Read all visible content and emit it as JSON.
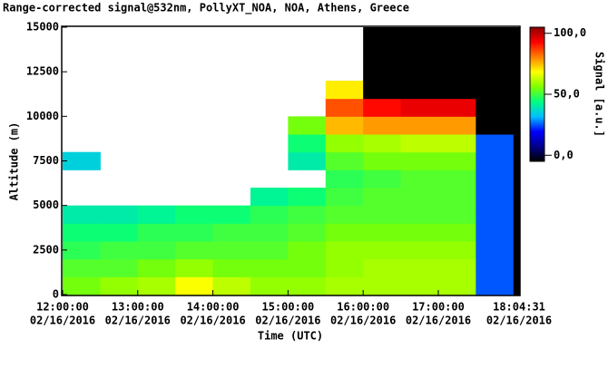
{
  "chart_data": {
    "type": "heatmap",
    "title": "Range-corrected signal@532nm, PollyXT_NOA, NOA, Athens, Greece",
    "xlabel": "Time (UTC)",
    "ylabel": "Altitude (m)",
    "colorbar_label": "Signal [a.u.]",
    "x": [
      12,
      12.5,
      13,
      13.5,
      14,
      14.5,
      15,
      15.5,
      16,
      16.5,
      17,
      17.5,
      18,
      18.0753
    ],
    "y": [
      0,
      1000,
      2000,
      3000,
      4000,
      5000,
      6000,
      7000,
      8000,
      9000,
      10000,
      11000,
      12000,
      13000,
      14000,
      15000
    ],
    "z": [
      [
        55,
        58,
        60,
        68,
        62,
        58,
        58,
        60,
        60,
        60,
        60,
        25,
        -5
      ],
      [
        52,
        52,
        55,
        58,
        55,
        55,
        55,
        58,
        60,
        60,
        60,
        25,
        -5
      ],
      [
        48,
        50,
        50,
        52,
        52,
        52,
        55,
        58,
        58,
        58,
        58,
        25,
        -5
      ],
      [
        45,
        45,
        48,
        48,
        50,
        50,
        52,
        55,
        55,
        55,
        55,
        25,
        -5
      ],
      [
        40,
        40,
        42,
        45,
        45,
        48,
        50,
        52,
        52,
        52,
        52,
        25,
        -5
      ],
      [
        null,
        null,
        null,
        null,
        null,
        42,
        45,
        50,
        52,
        52,
        52,
        25,
        -5
      ],
      [
        null,
        null,
        null,
        null,
        null,
        null,
        null,
        48,
        50,
        52,
        52,
        25,
        -5
      ],
      [
        35,
        null,
        null,
        null,
        null,
        null,
        40,
        52,
        55,
        55,
        55,
        25,
        -5
      ],
      [
        null,
        null,
        null,
        null,
        null,
        null,
        45,
        58,
        60,
        62,
        62,
        25,
        -5
      ],
      [
        null,
        null,
        null,
        null,
        null,
        null,
        55,
        75,
        78,
        78,
        78,
        -5,
        -5
      ],
      [
        null,
        null,
        null,
        null,
        null,
        null,
        null,
        85,
        92,
        95,
        95,
        -5,
        -5
      ],
      [
        null,
        null,
        null,
        null,
        null,
        null,
        null,
        70,
        -5,
        -5,
        -5,
        -5,
        -5
      ],
      [
        null,
        null,
        null,
        null,
        null,
        null,
        null,
        null,
        -5,
        -5,
        -5,
        -5,
        -5
      ],
      [
        null,
        null,
        null,
        null,
        null,
        null,
        null,
        null,
        -5,
        -5,
        -5,
        -5,
        -5
      ],
      [
        null,
        null,
        null,
        null,
        null,
        null,
        null,
        null,
        -5,
        -5,
        -5,
        -5,
        -5
      ]
    ],
    "xlim": [
      12,
      18.0753
    ],
    "ylim": [
      0,
      15000
    ],
    "xticks": [
      {
        "value": 12,
        "label": "12:00:00"
      },
      {
        "value": 13,
        "label": "13:00:00"
      },
      {
        "value": 14,
        "label": "14:00:00"
      },
      {
        "value": 15,
        "label": "15:00:00"
      },
      {
        "value": 16,
        "label": "16:00:00"
      },
      {
        "value": 17,
        "label": "17:00:00"
      },
      {
        "value": 18.0753,
        "label": "18:04:31"
      }
    ],
    "xtick_dates": [
      "02/16/2016",
      "02/16/2016",
      "02/16/2016",
      "02/16/2016",
      "02/16/2016",
      "02/16/2016",
      "02/16/2016"
    ],
    "yticks": [
      0,
      2500,
      5000,
      7500,
      10000,
      12500,
      15000
    ],
    "clim": [
      -5,
      105
    ],
    "cticks": [
      {
        "value": 0,
        "label": "0,0"
      },
      {
        "value": 50,
        "label": "50,0"
      },
      {
        "value": 100,
        "label": "100,0"
      }
    ],
    "colormap": [
      "#000000",
      "#00008b",
      "#0000ff",
      "#00bfff",
      "#00ff80",
      "#80ff00",
      "#ffff00",
      "#ff8000",
      "#ff0000",
      "#8b0000"
    ]
  }
}
